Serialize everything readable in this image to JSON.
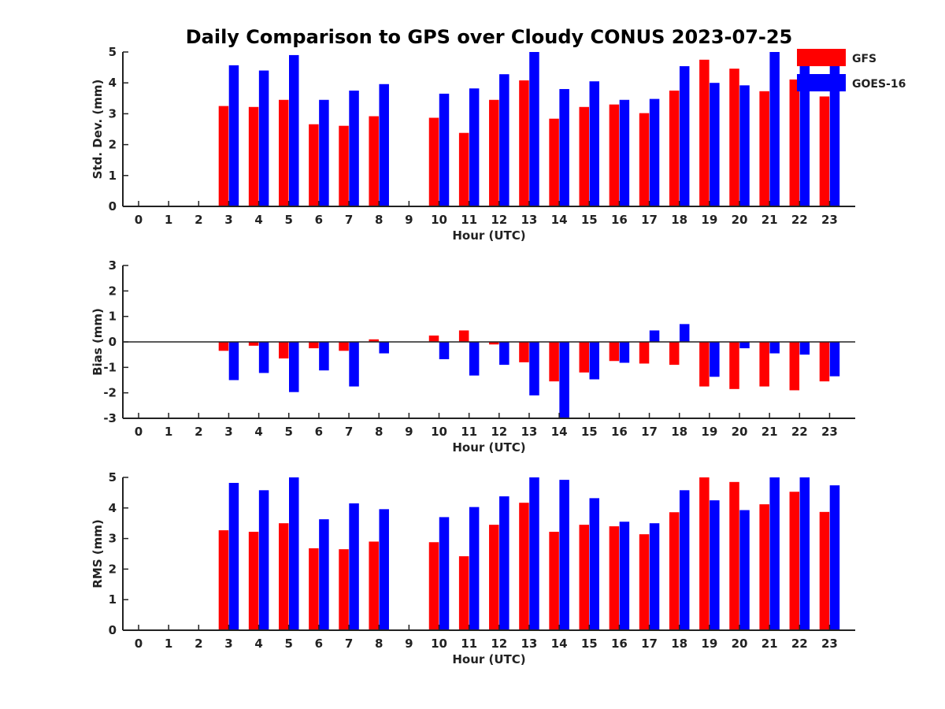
{
  "chart_data": [
    {
      "type": "bar",
      "title": "Daily Comparison to GPS over Cloudy CONUS 2023-07-25",
      "xlabel": "Hour (UTC)",
      "ylabel": "Std. Dev. (mm)",
      "ylim": [
        0,
        5
      ],
      "yticks": [
        "0",
        "1",
        "2",
        "3",
        "4",
        "5"
      ],
      "categories": [
        "0",
        "1",
        "2",
        "3",
        "4",
        "5",
        "6",
        "7",
        "8",
        "9",
        "10",
        "11",
        "12",
        "13",
        "14",
        "15",
        "16",
        "17",
        "18",
        "19",
        "20",
        "21",
        "22",
        "23"
      ],
      "series": [
        {
          "name": "GFS",
          "color": "#ff0000",
          "values": [
            null,
            null,
            null,
            3.25,
            3.22,
            3.45,
            2.66,
            2.61,
            2.92,
            null,
            2.87,
            2.38,
            3.45,
            4.08,
            2.84,
            3.22,
            3.3,
            3.02,
            3.75,
            4.75,
            4.46,
            3.73,
            4.11,
            3.56
          ]
        },
        {
          "name": "GOES-16",
          "color": "#0000ff",
          "values": [
            null,
            null,
            null,
            4.57,
            4.4,
            4.9,
            3.45,
            3.75,
            3.96,
            null,
            3.65,
            3.82,
            4.28,
            5.0,
            3.8,
            4.05,
            3.45,
            3.48,
            4.54,
            4.0,
            3.92,
            5.0,
            5.0,
            4.6
          ]
        }
      ],
      "legend": "top-right"
    },
    {
      "type": "bar",
      "xlabel": "Hour (UTC)",
      "ylabel": "Bias (mm)",
      "ylim": [
        -3,
        3
      ],
      "yticks": [
        "-3",
        "-2",
        "-1",
        "0",
        "1",
        "2",
        "3"
      ],
      "zero_line": true,
      "categories": [
        "0",
        "1",
        "2",
        "3",
        "4",
        "5",
        "6",
        "7",
        "8",
        "9",
        "10",
        "11",
        "12",
        "13",
        "14",
        "15",
        "16",
        "17",
        "18",
        "19",
        "20",
        "21",
        "22",
        "23"
      ],
      "series": [
        {
          "name": "GFS",
          "color": "#ff0000",
          "values": [
            null,
            null,
            null,
            -0.35,
            -0.15,
            -0.65,
            -0.25,
            -0.35,
            0.1,
            null,
            0.25,
            0.45,
            -0.1,
            -0.8,
            -1.55,
            -1.2,
            -0.75,
            -0.85,
            -0.9,
            -1.75,
            -1.85,
            -1.75,
            -1.9,
            -1.55
          ]
        },
        {
          "name": "GOES-16",
          "color": "#0000ff",
          "values": [
            null,
            null,
            null,
            -1.5,
            -1.22,
            -1.97,
            -1.12,
            -1.75,
            -0.45,
            null,
            -0.68,
            -1.32,
            -0.9,
            -2.1,
            -3.0,
            -1.47,
            -0.82,
            0.45,
            0.7,
            -1.37,
            -0.25,
            -0.45,
            -0.5,
            -1.35
          ]
        }
      ]
    },
    {
      "type": "bar",
      "xlabel": "Hour (UTC)",
      "ylabel": "RMS (mm)",
      "ylim": [
        0,
        5
      ],
      "yticks": [
        "0",
        "1",
        "2",
        "3",
        "4",
        "5"
      ],
      "categories": [
        "0",
        "1",
        "2",
        "3",
        "4",
        "5",
        "6",
        "7",
        "8",
        "9",
        "10",
        "11",
        "12",
        "13",
        "14",
        "15",
        "16",
        "17",
        "18",
        "19",
        "20",
        "21",
        "22",
        "23"
      ],
      "series": [
        {
          "name": "GFS",
          "color": "#ff0000",
          "values": [
            null,
            null,
            null,
            3.27,
            3.22,
            3.5,
            2.68,
            2.65,
            2.9,
            null,
            2.88,
            2.42,
            3.45,
            4.17,
            3.22,
            3.45,
            3.4,
            3.14,
            3.86,
            5.0,
            4.85,
            4.12,
            4.53,
            3.87
          ]
        },
        {
          "name": "GOES-16",
          "color": "#0000ff",
          "values": [
            null,
            null,
            null,
            4.82,
            4.58,
            5.0,
            3.63,
            4.15,
            3.96,
            null,
            3.7,
            4.03,
            4.38,
            5.0,
            4.92,
            4.32,
            3.55,
            3.5,
            4.58,
            4.25,
            3.93,
            5.0,
            5.0,
            4.74
          ]
        }
      ]
    }
  ]
}
